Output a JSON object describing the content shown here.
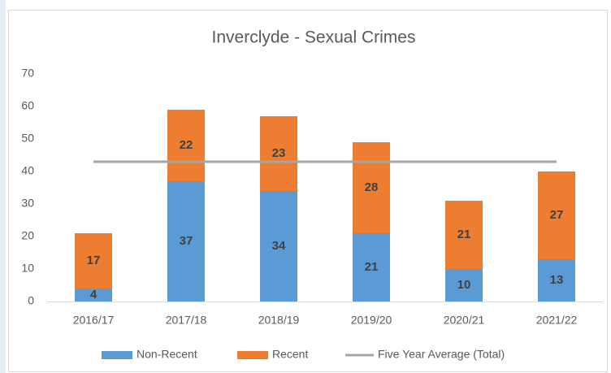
{
  "chart_data": {
    "type": "bar",
    "stacked": true,
    "title": "Inverclyde - Sexual Crimes",
    "categories": [
      "2016/17",
      "2017/18",
      "2018/19",
      "2019/20",
      "2020/21",
      "2021/22"
    ],
    "series": [
      {
        "name": "Non-Recent",
        "color": "#5b9bd5",
        "values": [
          4,
          37,
          34,
          21,
          10,
          13
        ]
      },
      {
        "name": "Recent",
        "color": "#ed7d31",
        "values": [
          17,
          22,
          23,
          28,
          21,
          27
        ]
      },
      {
        "name": "Five Year Average (Total)",
        "color": "#a5a5a5",
        "type": "line",
        "values": [
          43,
          43,
          43,
          43,
          43,
          43
        ]
      }
    ],
    "ylim": [
      0,
      70
    ],
    "yticks": [
      0,
      10,
      20,
      30,
      40,
      50,
      60,
      70
    ],
    "grid": false,
    "legend": "bottom"
  }
}
